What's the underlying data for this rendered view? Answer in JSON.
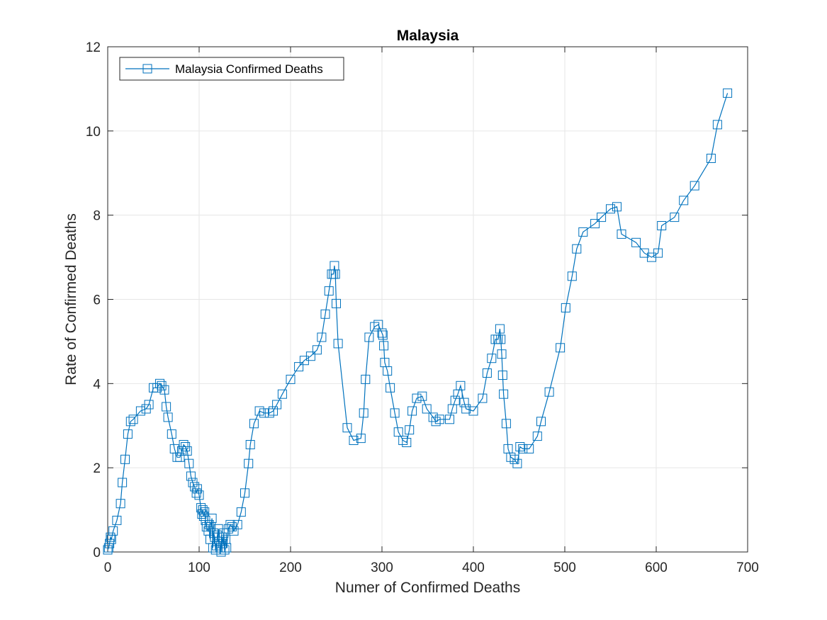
{
  "chart_data": {
    "type": "line",
    "title": "Malaysia",
    "xlabel": "Numer of Confirmed Deaths",
    "ylabel": "Rate of Confirmed Deaths",
    "xlim": [
      0,
      700
    ],
    "ylim": [
      0,
      12
    ],
    "xticks": [
      0,
      100,
      200,
      300,
      400,
      500,
      600,
      700
    ],
    "yticks": [
      0,
      2,
      4,
      6,
      8,
      10,
      12
    ],
    "grid": true,
    "legend_position": "top-left",
    "marker": "square",
    "series_color": "#0072BD",
    "series": [
      {
        "name": "Malaysia Confirmed Deaths",
        "x": [
          0,
          1,
          2,
          3,
          4,
          6,
          10,
          14,
          16,
          19,
          22,
          25,
          28,
          36,
          42,
          45,
          50,
          54,
          57,
          59,
          62,
          64,
          66,
          70,
          73,
          76,
          79,
          81,
          83,
          85,
          87,
          89,
          91,
          93,
          95,
          97,
          98,
          100,
          102,
          103,
          104,
          105,
          106,
          107,
          108,
          110,
          111,
          112,
          113,
          114,
          115,
          116,
          117,
          118,
          119,
          120,
          121,
          122,
          123,
          124,
          125,
          126,
          127,
          128,
          129,
          130,
          132,
          134,
          136,
          138,
          142,
          146,
          150,
          154,
          156,
          160,
          166,
          171,
          177,
          181,
          185,
          191,
          200,
          209,
          215,
          222,
          229,
          234,
          238,
          242,
          245,
          247,
          248,
          249,
          250,
          252,
          262,
          269,
          277,
          280,
          282,
          286,
          292,
          296,
          300,
          301,
          302,
          303,
          306,
          309,
          314,
          318,
          323,
          327,
          330,
          333,
          338,
          344,
          349,
          356,
          359,
          363,
          374,
          377,
          380,
          383,
          386,
          390,
          392,
          400,
          410,
          415,
          420,
          424,
          427,
          429,
          430,
          431,
          432,
          433,
          436,
          438,
          441,
          445,
          448,
          451,
          454,
          461,
          470,
          474,
          483,
          495,
          501,
          508,
          513,
          520,
          533,
          540,
          550,
          557,
          562,
          578,
          587,
          595,
          602,
          606,
          620,
          630,
          642,
          660,
          667,
          678
        ],
        "values": [
          0.05,
          0.1,
          0.2,
          0.35,
          0.3,
          0.5,
          0.75,
          1.15,
          1.65,
          2.2,
          2.8,
          3.1,
          3.15,
          3.35,
          3.4,
          3.5,
          3.9,
          3.9,
          4.0,
          3.95,
          3.85,
          3.45,
          3.2,
          2.8,
          2.45,
          2.25,
          2.25,
          2.4,
          2.55,
          2.5,
          2.4,
          2.1,
          1.8,
          1.65,
          1.55,
          1.4,
          1.5,
          1.35,
          1.05,
          0.9,
          1.0,
          0.85,
          0.95,
          0.75,
          0.6,
          0.5,
          0.65,
          0.3,
          0.6,
          0.8,
          0.1,
          0.45,
          0.35,
          0.05,
          0.15,
          0.4,
          0.55,
          0.25,
          0.1,
          0.0,
          0.35,
          0.2,
          0.45,
          0.05,
          0.3,
          0.1,
          0.55,
          0.65,
          0.6,
          0.5,
          0.65,
          0.95,
          1.4,
          2.1,
          2.55,
          3.05,
          3.35,
          3.3,
          3.3,
          3.35,
          3.5,
          3.75,
          4.1,
          4.4,
          4.55,
          4.65,
          4.8,
          5.1,
          5.65,
          6.2,
          6.6,
          6.6,
          6.8,
          6.6,
          5.9,
          4.95,
          2.95,
          2.65,
          2.7,
          3.3,
          4.1,
          5.1,
          5.35,
          5.4,
          5.2,
          5.15,
          4.9,
          4.5,
          4.3,
          3.9,
          3.3,
          2.85,
          2.65,
          2.6,
          2.9,
          3.35,
          3.65,
          3.7,
          3.4,
          3.2,
          3.1,
          3.15,
          3.15,
          3.4,
          3.6,
          3.75,
          3.95,
          3.55,
          3.4,
          3.35,
          3.65,
          4.25,
          4.6,
          5.05,
          5.05,
          5.3,
          5.05,
          4.7,
          4.2,
          3.75,
          3.05,
          2.45,
          2.25,
          2.2,
          2.1,
          2.5,
          2.45,
          2.45,
          2.75,
          3.1,
          3.8,
          4.85,
          5.8,
          6.55,
          7.2,
          7.6,
          7.8,
          7.95,
          8.15,
          8.2,
          7.55,
          7.35,
          7.1,
          7.0,
          7.1,
          7.75,
          7.95,
          8.35,
          8.7,
          9.35,
          10.15,
          10.9
        ]
      }
    ]
  }
}
